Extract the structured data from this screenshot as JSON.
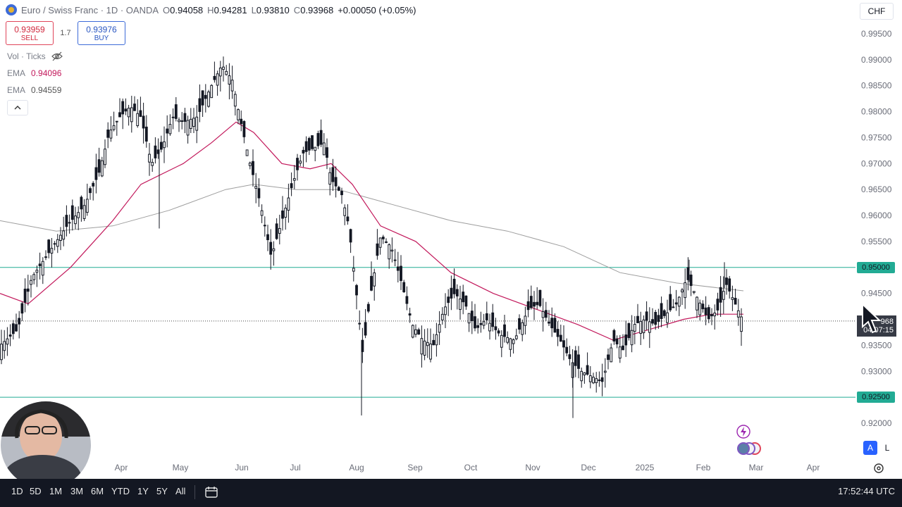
{
  "header": {
    "symbol_title": "Euro / Swiss Franc · 1D · OANDA",
    "open_key": "O",
    "open": "0.94058",
    "high_key": "H",
    "high": "0.94281",
    "low_key": "L",
    "low": "0.93810",
    "close_key": "C",
    "close": "0.93968",
    "change": "+0.00050 (+0.05%)"
  },
  "trade": {
    "sell_price": "0.93959",
    "sell_label": "SELL",
    "spread": "1.7",
    "buy_price": "0.93976",
    "buy_label": "BUY"
  },
  "indicators": {
    "vol_label": "Vol · Ticks",
    "ema1_label": "EMA",
    "ema1_value": "0.94096",
    "ema2_label": "EMA",
    "ema2_value": "0.94559"
  },
  "currency": "CHF",
  "price_axis": [
    "0.99500",
    "0.99000",
    "0.98500",
    "0.98000",
    "0.97500",
    "0.97000",
    "0.96500",
    "0.96000",
    "0.95500",
    "0.95000",
    "0.94500",
    "0.94000",
    "0.93500",
    "0.93000",
    "0.92500",
    "0.92000"
  ],
  "levels": {
    "upper": "0.95000",
    "lower": "0.92500"
  },
  "current_price": {
    "value": "968",
    "countdown": "04:07:15"
  },
  "time_axis": [
    "Apr",
    "May",
    "Jun",
    "Jul",
    "Aug",
    "Sep",
    "Oct",
    "Nov",
    "Dec",
    "2025",
    "Feb",
    "Mar",
    "Apr"
  ],
  "axis_buttons": {
    "auto": "A",
    "log": "L"
  },
  "ranges": [
    "1D",
    "5D",
    "1M",
    "3M",
    "6M",
    "YTD",
    "1Y",
    "5Y",
    "All"
  ],
  "clock": "17:52:44 UTC",
  "colors": {
    "level_line": "#22ab94",
    "ema_fast": "#c2185b",
    "ema_slow": "#9e9e9e",
    "accent": "#2962ff"
  },
  "icons": [
    "symbol-logo-icon",
    "eye-off-icon",
    "chevron-up-icon",
    "calendar-icon",
    "gear-icon",
    "flash-icon",
    "cursor-icon"
  ]
}
